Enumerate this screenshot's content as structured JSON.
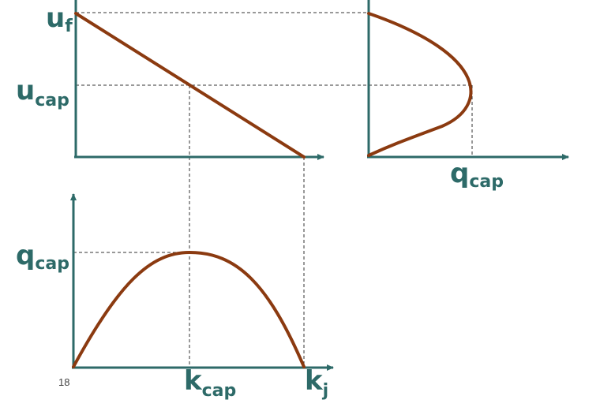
{
  "diagram": {
    "labels": {
      "uf_main": "u",
      "uf_sub": "f",
      "ucap_main": "u",
      "ucap_sub": "cap",
      "qcap_right_main": "q",
      "qcap_right_sub": "cap",
      "qcap_left_main": "q",
      "qcap_left_sub": "cap",
      "kcap_main": "k",
      "kcap_sub": "cap",
      "kj_main": "k",
      "kj_sub": "j"
    },
    "page_number": "18",
    "colors": {
      "axis": "#2d6a68",
      "curve": "#8b3a10",
      "guide": "#333333"
    }
  }
}
